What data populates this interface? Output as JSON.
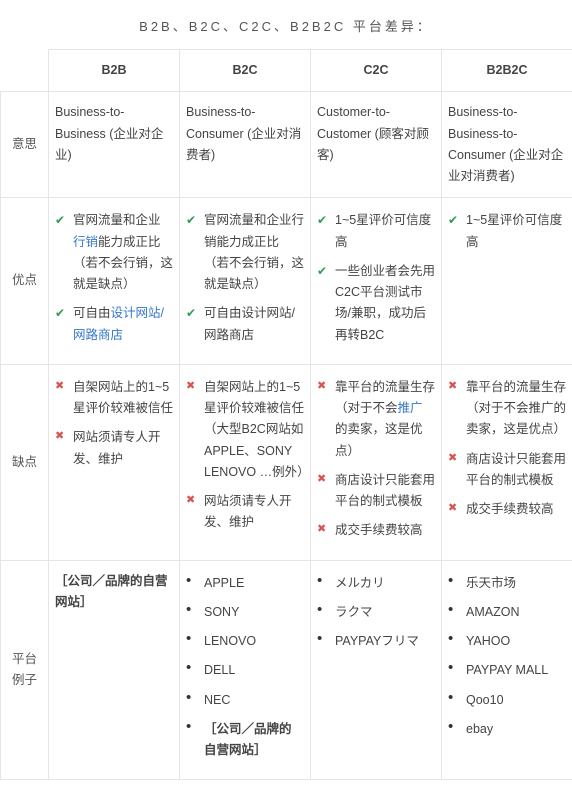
{
  "page_title": "B2B、B2C、C2C、B2B2C 平台差异：",
  "colors": {
    "check": "#2e9b57",
    "cross": "#d9534f",
    "link": "#3477c9",
    "border": "#e5e5e5",
    "text": "#444"
  },
  "columns": [
    {
      "key": "b2b",
      "header": "B2B"
    },
    {
      "key": "b2c",
      "header": "B2C"
    },
    {
      "key": "c2c",
      "header": "C2C"
    },
    {
      "key": "b2b2c",
      "header": "B2B2C"
    }
  ],
  "rows": {
    "meaning": {
      "label": "意思",
      "b2b": "Business-to-Business (企业对企业)",
      "b2c": "Business-to-Consumer (企业对消费者)",
      "c2c": "Customer-to-Customer (顾客对顾客)",
      "b2b2c": "Business-to-Business-to-Consumer (企业对企业对消费者)"
    },
    "pros": {
      "label": "优点",
      "b2b": [
        {
          "pre": "官网流量和企业",
          "link": "行销",
          "post": "能力成正比 （若不会行销，这就是缺点）"
        },
        {
          "pre": "可自由",
          "link": "设计网站/网路商店",
          "post": ""
        }
      ],
      "b2c": [
        {
          "text": "官网流量和企业行销能力成正比 （若不会行销，这就是缺点）"
        },
        {
          "text": "可自由设计网站/网路商店"
        }
      ],
      "c2c": [
        {
          "text": "1~5星评价可信度高"
        },
        {
          "text": "一些创业者会先用C2C平台测试市场/兼职，成功后再转B2C"
        }
      ],
      "b2b2c": [
        {
          "text": "1~5星评价可信度高"
        }
      ]
    },
    "cons": {
      "label": "缺点",
      "b2b": [
        {
          "text": "自架网站上的1~5星评价较难被信任"
        },
        {
          "text": "网站须请专人开发、维护"
        }
      ],
      "b2c": [
        {
          "text": "自架网站上的1~5星评价较难被信任（大型B2C网站如APPLE、SONY LENOVO …例外）"
        },
        {
          "text": "网站须请专人开发、维护"
        }
      ],
      "c2c": [
        {
          "pre": "靠平台的流量生存（对于不会",
          "link": "推广",
          "post": "的卖家，这是优点）"
        },
        {
          "text": "商店设计只能套用平台的制式模板"
        },
        {
          "text": "成交手续费较高"
        }
      ],
      "b2b2c": [
        {
          "text": "靠平台的流量生存（对于不会推广的卖家，这是优点）"
        },
        {
          "text": "商店设计只能套用平台的制式模板"
        },
        {
          "text": "成交手续费较高"
        }
      ]
    },
    "examples": {
      "label": "平台例子",
      "b2b_note": "公司／品牌的自营网站",
      "b2c": [
        "APPLE",
        "SONY",
        "LENOVO",
        "DELL",
        "NEC"
      ],
      "b2c_note": "公司／品牌的自营网站",
      "c2c": [
        "メルカリ",
        "ラクマ",
        "PAYPAYフリマ"
      ],
      "b2b2c": [
        "乐天市场",
        "AMAZON",
        "YAHOO",
        "PAYPAY MALL",
        "Qoo10",
        "ebay"
      ]
    }
  }
}
